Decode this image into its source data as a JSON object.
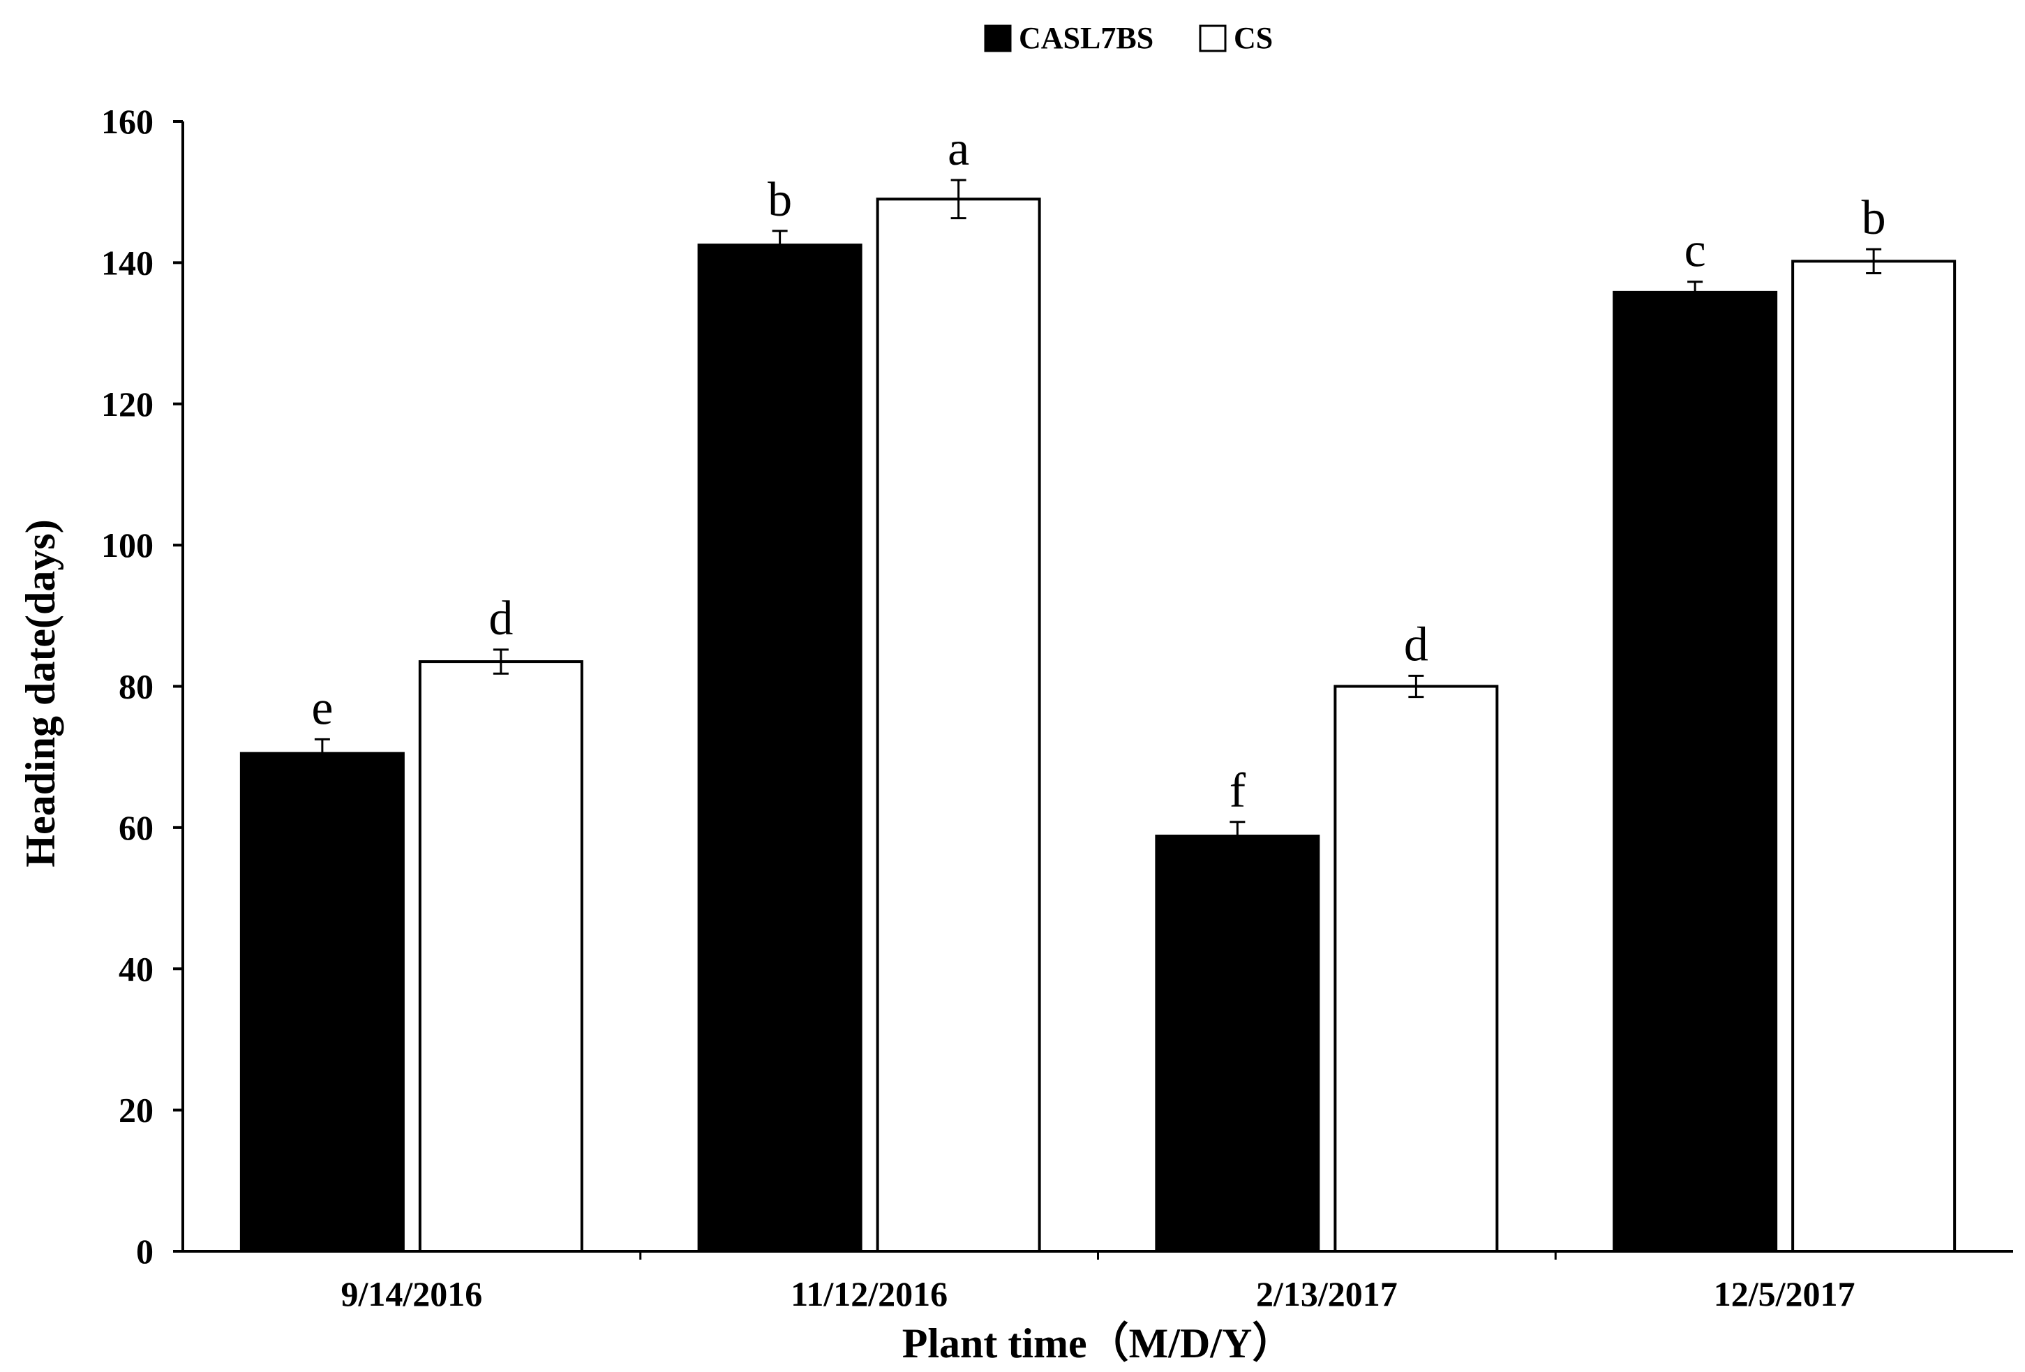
{
  "chart_data": {
    "type": "bar",
    "categories": [
      "9/14/2016",
      "11/12/2016",
      "2/13/2017",
      "12/5/2017"
    ],
    "series": [
      {
        "name": "CASL7BS",
        "color": "#000000",
        "values": [
          70.5,
          142.5,
          58.8,
          135.8
        ],
        "errors": [
          2.0,
          2.0,
          2.0,
          1.5
        ],
        "letters": [
          "e",
          "b",
          "f",
          "c"
        ]
      },
      {
        "name": "CS",
        "color": "#ffffff",
        "values": [
          83.5,
          149.0,
          80.0,
          140.2
        ],
        "errors": [
          1.7,
          2.7,
          1.5,
          1.7
        ],
        "letters": [
          "d",
          "a",
          "d",
          "b"
        ]
      }
    ],
    "xlabel": "Plant time（M/D/Y）",
    "ylabel": "Heading date(days)",
    "ylim": [
      0,
      160
    ],
    "yticks": [
      "0",
      "20",
      "40",
      "60",
      "80",
      "100",
      "120",
      "140",
      "160"
    ],
    "grid": false,
    "legend_position": "top-center"
  }
}
